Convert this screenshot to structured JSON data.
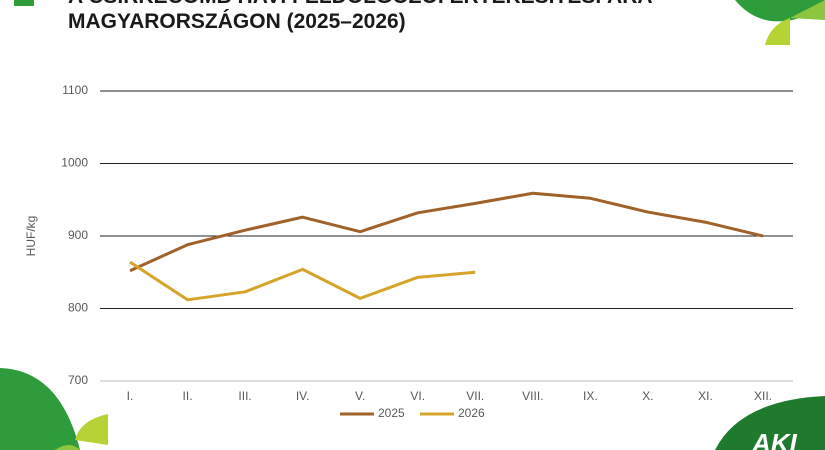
{
  "chart_data": {
    "type": "line",
    "title_lines": [
      "A CSIRKECOMB HAVI FELDOLGOZÓI ÉRTÉKESÍTÉSI ÁRA",
      "MAGYARORSZÁGON (2025–2026)"
    ],
    "y_label": "HUF/kg",
    "categories": [
      "I.",
      "II.",
      "III.",
      "IV.",
      "V.",
      "VI.",
      "VII.",
      "VIII.",
      "IX.",
      "X.",
      "XI.",
      "XII."
    ],
    "series": [
      {
        "name": "2025",
        "color": "#a0612a",
        "values": [
          852,
          888,
          908,
          926,
          906,
          932,
          945,
          959,
          952,
          933,
          919,
          900
        ]
      },
      {
        "name": "2026",
        "color": "#d4a52a",
        "values": [
          864,
          812,
          823,
          854,
          814,
          843,
          850,
          null,
          null,
          null,
          null,
          null
        ]
      }
    ],
    "ylim": [
      700,
      1100
    ],
    "yticks": [
      700,
      800,
      900,
      1000,
      1100
    ],
    "grid": true,
    "legend": "bottom",
    "logo": "AKI"
  }
}
